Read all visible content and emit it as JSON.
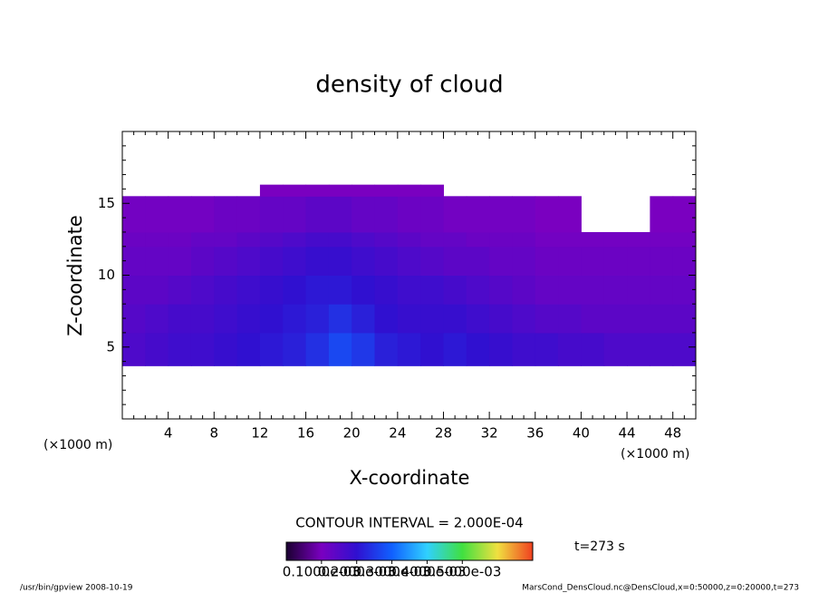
{
  "chart_data": {
    "type": "heatmap",
    "title": "density of cloud",
    "x_label": "X-coordinate",
    "y_label": "Z-coordinate",
    "x_unit_labels": [
      "(×1000 m)",
      "(×1000 m)"
    ],
    "contour_interval": "CONTOUR INTERVAL = 2.000E-04",
    "time_label": "t=273 s",
    "footer_left": "/usr/bin/gpview   2008-10-19",
    "footer_right": "MarsCond_DensCloud.nc@DensCloud,x=0:50000,z=0:20000,t=273",
    "xlim": [
      0,
      50
    ],
    "ylim": [
      0,
      20
    ],
    "xticks": [
      4,
      8,
      12,
      16,
      20,
      24,
      28,
      32,
      36,
      40,
      44,
      48
    ],
    "yticks": [
      5,
      10,
      15
    ],
    "xminorticks": [
      1,
      2,
      3,
      5,
      6,
      7,
      9,
      10,
      11,
      13,
      14,
      15,
      17,
      18,
      19,
      21,
      22,
      23,
      25,
      26,
      27,
      29,
      30,
      31,
      33,
      34,
      35,
      37,
      38,
      39,
      41,
      42,
      43,
      45,
      46,
      47,
      49
    ],
    "yminorticks": [
      1,
      2,
      3,
      4,
      6,
      7,
      8,
      9,
      11,
      12,
      13,
      14,
      16,
      17,
      18,
      19
    ],
    "xbins": [
      0,
      2,
      4,
      6,
      8,
      10,
      12,
      14,
      16,
      18,
      20,
      22,
      24,
      26,
      28,
      30,
      32,
      34,
      36,
      38,
      40,
      42,
      44,
      46,
      48,
      50
    ],
    "ybins": [
      3.7,
      6,
      8,
      10,
      12,
      13,
      15.5,
      16.3
    ],
    "values": [
      [
        0.00016,
        0.00017,
        0.00018,
        0.00018,
        0.00019,
        0.0002,
        0.00021,
        0.00022,
        0.00024,
        0.00027,
        0.00025,
        0.00022,
        0.00021,
        0.0002,
        0.00021,
        0.0002,
        0.00019,
        0.00018,
        0.00018,
        0.00017,
        0.00017,
        0.00016,
        0.00016,
        0.00016,
        0.00016
      ],
      [
        0.00015,
        0.00016,
        0.00017,
        0.00017,
        0.00018,
        0.00019,
        0.0002,
        0.00021,
        0.00022,
        0.00024,
        0.00022,
        0.0002,
        0.00019,
        0.00019,
        0.00019,
        0.00018,
        0.00017,
        0.00016,
        0.00015,
        0.00015,
        0.00014,
        0.00014,
        0.00014,
        0.00014,
        0.00014
      ],
      [
        0.00014,
        0.00014,
        0.00015,
        0.00016,
        0.00017,
        0.00018,
        0.00019,
        0.0002,
        0.00021,
        0.00021,
        0.0002,
        0.00019,
        0.00018,
        0.00018,
        0.00017,
        0.00016,
        0.00015,
        0.00014,
        0.00013,
        0.00013,
        0.00013,
        0.00013,
        0.00013,
        0.00013,
        0.00013
      ],
      [
        0.00013,
        0.00013,
        0.00013,
        0.00014,
        0.00015,
        0.00016,
        0.00017,
        0.00018,
        0.00019,
        0.00019,
        0.00018,
        0.00017,
        0.00016,
        0.00015,
        0.00014,
        0.00014,
        0.00013,
        0.00013,
        0.00012,
        0.00012,
        0.00012,
        0.00012,
        0.00012,
        0.00012,
        0.00012
      ],
      [
        0.00012,
        0.00012,
        0.00012,
        0.00013,
        0.00013,
        0.00014,
        0.00015,
        0.00016,
        0.00017,
        0.00017,
        0.00016,
        0.00015,
        0.00014,
        0.00013,
        0.00013,
        0.00012,
        0.00012,
        0.00012,
        0.00011,
        0.00011,
        0.00011,
        0.00011,
        0.00011,
        0.00011,
        0.00011
      ],
      [
        0.00011,
        0.00011,
        0.00011,
        0.00011,
        0.00012,
        0.00012,
        0.00013,
        0.00013,
        0.00014,
        0.00014,
        0.00013,
        0.00013,
        0.00012,
        0.00012,
        0.00011,
        0.00011,
        0.00011,
        0.00011,
        0.0001,
        0.0001,
        null,
        null,
        null,
        0.0001,
        0.0001
      ],
      [
        null,
        null,
        null,
        null,
        null,
        null,
        0.0001,
        0.0001,
        0.0001,
        0.0001,
        0.0001,
        0.0001,
        0.0001,
        0.0001,
        null,
        null,
        null,
        null,
        null,
        null,
        null,
        null,
        null,
        null,
        null
      ]
    ],
    "clim": [
      0,
      0.0007
    ],
    "colormap": [
      "#1a0030",
      "#7a00c0",
      "#3010d0",
      "#1060ff",
      "#30d0ff",
      "#40e040",
      "#f0e040",
      "#f04020"
    ],
    "colorbar_ticks": [
      {
        "value": 0.0001,
        "label": "0.1000e-03"
      },
      {
        "value": 0.0002,
        "label": "0.2000e-03"
      },
      {
        "value": 0.0003,
        "label": "0.3000e-03"
      },
      {
        "value": 0.0004,
        "label": "0.4000e-03"
      },
      {
        "value": 0.0005,
        "label": "0.5000e-03"
      }
    ]
  }
}
